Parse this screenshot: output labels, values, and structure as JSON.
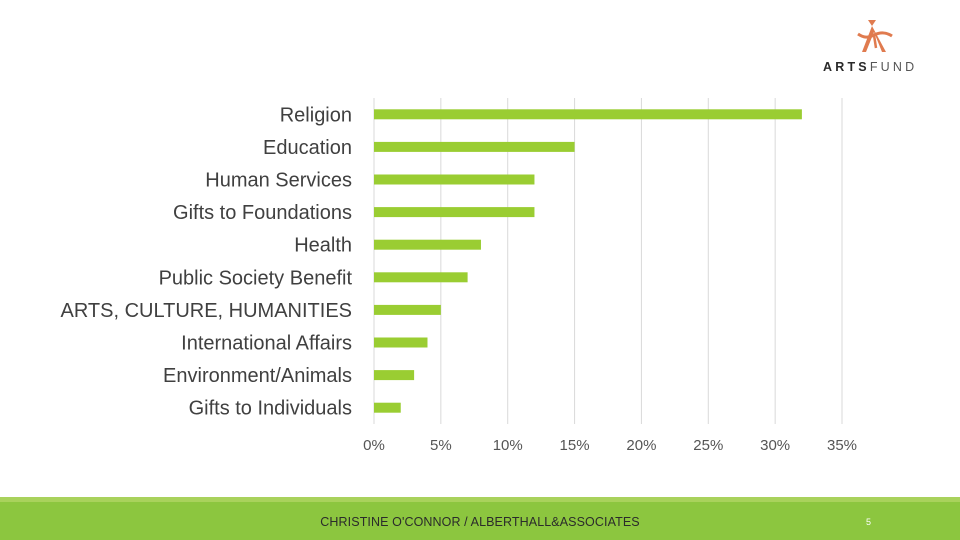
{
  "logo": {
    "text_bold": "ARTS",
    "text_light": "FUND",
    "icon": "artsfund-figure-icon"
  },
  "colors": {
    "bar": "#9acd32",
    "gridline": "#d9d9d9",
    "footer": "#8cc63f",
    "logo_accent": "#e07b4f"
  },
  "chart_data": {
    "type": "bar",
    "orientation": "horizontal",
    "categories": [
      "Religion",
      "Education",
      "Human Services",
      "Gifts to Foundations",
      "Health",
      "Public Society Benefit",
      "ARTS, CULTURE, HUMANITIES",
      "International Affairs",
      "Environment/Animals",
      "Gifts to Individuals"
    ],
    "values": [
      32,
      15,
      12,
      12,
      8,
      7,
      5,
      4,
      3,
      2
    ],
    "xlim": [
      0,
      35
    ],
    "x_ticks": [
      "0%",
      "5%",
      "10%",
      "15%",
      "20%",
      "25%",
      "30%",
      "35%"
    ],
    "x_tick_values": [
      0,
      5,
      10,
      15,
      20,
      25,
      30,
      35
    ],
    "grid": true,
    "title": "",
    "xlabel": "",
    "ylabel": ""
  },
  "footer": {
    "text": "CHRISTINE O'CONNOR / ALBERTHALL&ASSOCIATES",
    "page_number": "5"
  }
}
